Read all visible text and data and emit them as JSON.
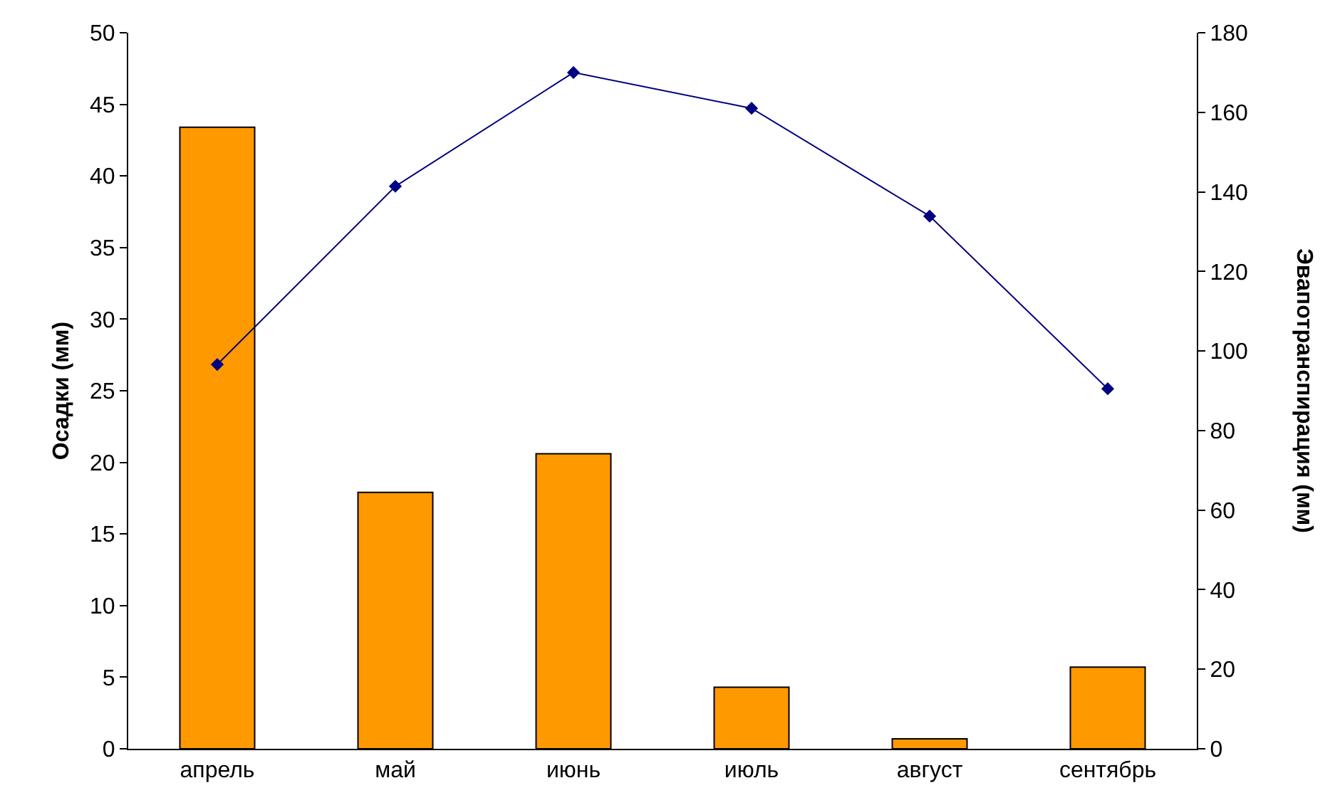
{
  "chart_data": {
    "type": "bar",
    "categories": [
      "апрель",
      "май",
      "июнь",
      "июль",
      "август",
      "сентябрь"
    ],
    "series": [
      {
        "color": "#ff9900",
        "values": [
          43.4,
          17.9,
          20.6,
          4.3,
          0.7,
          5.7
        ]
      },
      {
        "type": "line",
        "axis": "y2",
        "color": "#000080",
        "values": [
          96.6,
          141.4,
          170,
          161,
          133.9,
          90.5
        ]
      }
    ],
    "ylabel": "Осадки (мм)",
    "y2label": "Эвапотранспирация (мм)",
    "ylim": [
      0,
      50
    ],
    "yticks": [
      0,
      5,
      10,
      15,
      20,
      25,
      30,
      35,
      40,
      45,
      50
    ],
    "y2lim": [
      0,
      180
    ],
    "y2ticks": [
      0,
      20,
      40,
      60,
      80,
      100,
      120,
      140,
      160,
      180
    ],
    "marker": "diamond",
    "line_style": "solid"
  }
}
